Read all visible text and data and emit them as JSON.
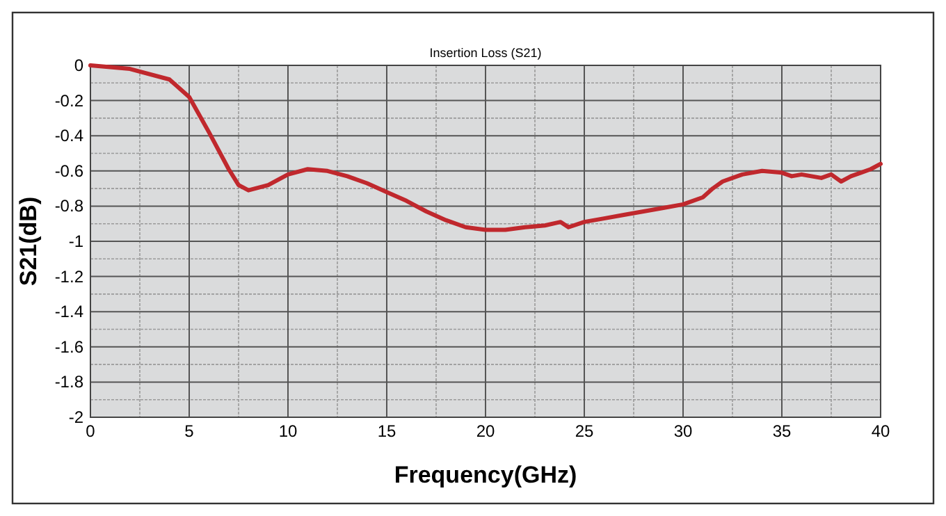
{
  "chart_data": {
    "type": "line",
    "title": "Insertion Loss (S21)",
    "xlabel": "Frequency(GHz)",
    "ylabel": "S21(dB)",
    "xlim": [
      0,
      40
    ],
    "xticks": [
      0,
      5,
      10,
      15,
      20,
      25,
      30,
      35,
      40
    ],
    "ylim": [
      -2,
      0
    ],
    "yticks": [
      0,
      -0.2,
      -0.4,
      -0.6,
      -0.8,
      -1,
      -1.2,
      -1.4,
      -1.6,
      -1.8,
      -2
    ],
    "grid": true,
    "marker": "none",
    "line_style": "solid",
    "series": [
      {
        "color": "#c0282d",
        "x": [
          0,
          2,
          4,
          5,
          6,
          7,
          7.5,
          8,
          9,
          10,
          11,
          12,
          13,
          14,
          15,
          16,
          17,
          18,
          19,
          20,
          21,
          22,
          23,
          23.8,
          24.2,
          25,
          26,
          27,
          28,
          29,
          30,
          31,
          31.5,
          32,
          33,
          34,
          35,
          35.5,
          36,
          37,
          37.5,
          38,
          38.5,
          39,
          39.5,
          40
        ],
        "values": [
          0,
          -0.02,
          -0.08,
          -0.18,
          -0.38,
          -0.59,
          -0.68,
          -0.71,
          -0.68,
          -0.62,
          -0.59,
          -0.6,
          -0.63,
          -0.67,
          -0.72,
          -0.77,
          -0.83,
          -0.88,
          -0.92,
          -0.935,
          -0.935,
          -0.92,
          -0.91,
          -0.89,
          -0.92,
          -0.89,
          -0.87,
          -0.85,
          -0.83,
          -0.81,
          -0.79,
          -0.75,
          -0.7,
          -0.66,
          -0.62,
          -0.6,
          -0.61,
          -0.63,
          -0.62,
          -0.64,
          -0.62,
          -0.66,
          -0.63,
          -0.61,
          -0.59,
          -0.56
        ]
      }
    ]
  }
}
